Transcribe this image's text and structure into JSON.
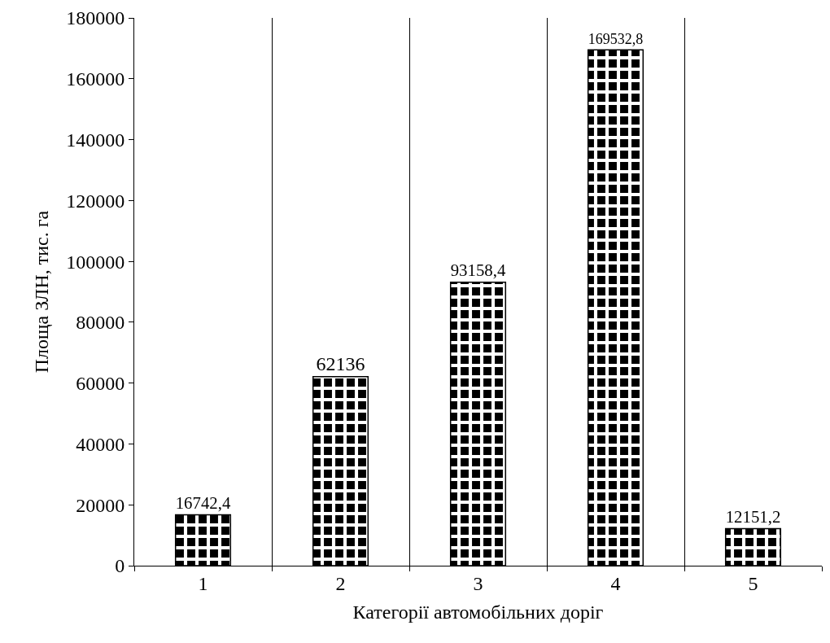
{
  "chart_data": {
    "type": "bar",
    "xlabel": "Категорії автомобільних доріг",
    "ylabel": "Площа ЗЛН, тис. га",
    "categories": [
      "1",
      "2",
      "3",
      "4",
      "5"
    ],
    "values": [
      16742.4,
      62136,
      93158.4,
      169532.8,
      12151.2
    ],
    "value_labels": [
      "16742,4",
      "62136",
      "93158,4",
      "169532,8",
      "12151,2"
    ],
    "color": "#000000",
    "ylim": [
      0,
      180000
    ],
    "yticks": [
      0,
      20000,
      40000,
      60000,
      80000,
      100000,
      120000,
      140000,
      160000,
      180000
    ],
    "grid": "x"
  }
}
